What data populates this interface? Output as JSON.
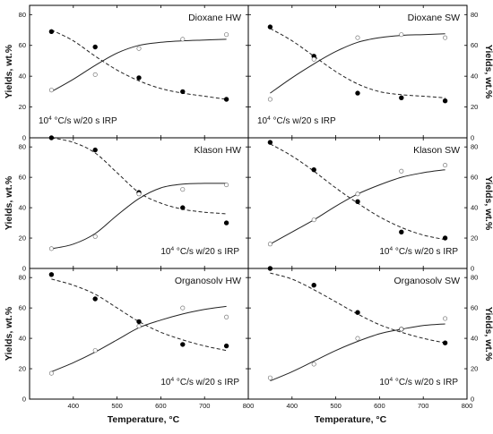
{
  "chart_data": [
    {
      "type": "scatter",
      "title": "Dioxane HW",
      "annotation": {
        "base": "10",
        "exp": "4",
        "rest": " °C/s w/20 s IRP"
      },
      "x": [
        350,
        450,
        550,
        650,
        750
      ],
      "series": [
        {
          "marker": "filled",
          "values": [
            69,
            59,
            39,
            30,
            25
          ]
        },
        {
          "marker": "open",
          "values": [
            31,
            41,
            58,
            64,
            67
          ]
        }
      ],
      "fits": [
        {
          "style": "dashed",
          "x": [
            350,
            400,
            450,
            500,
            550,
            600,
            650,
            700,
            750
          ],
          "y": [
            70,
            63,
            53,
            44,
            37,
            32,
            29,
            27,
            25
          ]
        },
        {
          "style": "solid",
          "x": [
            350,
            400,
            450,
            500,
            550,
            600,
            650,
            700,
            750
          ],
          "y": [
            30,
            38,
            47,
            55,
            60,
            62,
            63,
            63.5,
            64
          ]
        }
      ],
      "ylim": [
        0,
        86
      ],
      "xlim": [
        300,
        800
      ]
    },
    {
      "type": "scatter",
      "title": "Dioxane SW",
      "annotation": {
        "base": "10",
        "exp": "4",
        "rest": " °C/s w/20 s IRP"
      },
      "x": [
        350,
        450,
        550,
        650,
        750
      ],
      "series": [
        {
          "marker": "filled",
          "values": [
            72,
            53,
            29,
            26,
            24
          ]
        },
        {
          "marker": "open",
          "values": [
            25,
            51,
            65,
            67,
            65
          ]
        }
      ],
      "fits": [
        {
          "style": "dashed",
          "x": [
            350,
            400,
            450,
            500,
            550,
            600,
            650,
            700,
            750
          ],
          "y": [
            71,
            63,
            53,
            43,
            35,
            30,
            28,
            27,
            26
          ]
        },
        {
          "style": "solid",
          "x": [
            350,
            400,
            450,
            500,
            550,
            600,
            650,
            700,
            750
          ],
          "y": [
            29,
            39,
            48,
            56,
            62,
            65,
            66.5,
            67,
            67.5
          ]
        }
      ],
      "ylim": [
        0,
        86
      ],
      "xlim": [
        300,
        800
      ]
    },
    {
      "type": "scatter",
      "title": "Klason HW",
      "annotation": {
        "base": "10",
        "exp": "4",
        "rest": " °C/s w/20 s IRP"
      },
      "x": [
        350,
        450,
        550,
        650,
        750
      ],
      "series": [
        {
          "marker": "filled",
          "values": [
            86,
            78,
            50,
            40,
            30
          ]
        },
        {
          "marker": "open",
          "values": [
            13,
            21,
            49,
            52,
            55
          ]
        }
      ],
      "fits": [
        {
          "style": "dashed",
          "x": [
            350,
            400,
            450,
            500,
            550,
            600,
            650,
            700,
            750
          ],
          "y": [
            86,
            83,
            76,
            63,
            50,
            43,
            39,
            37,
            36
          ]
        },
        {
          "style": "solid",
          "x": [
            350,
            400,
            450,
            500,
            550,
            600,
            650,
            700,
            750
          ],
          "y": [
            13,
            16,
            23,
            35,
            46,
            53,
            55.5,
            56,
            56
          ]
        }
      ],
      "ylim": [
        0,
        86
      ],
      "xlim": [
        300,
        800
      ]
    },
    {
      "type": "scatter",
      "title": "Klason SW",
      "annotation": {
        "base": "10",
        "exp": "4",
        "rest": " °C/s w/20 s IRP"
      },
      "x": [
        350,
        450,
        550,
        650,
        750
      ],
      "series": [
        {
          "marker": "filled",
          "values": [
            83,
            65,
            44,
            24,
            20
          ]
        },
        {
          "marker": "open",
          "values": [
            16,
            32,
            49,
            64,
            68
          ]
        }
      ],
      "fits": [
        {
          "style": "dashed",
          "x": [
            350,
            400,
            450,
            500,
            550,
            600,
            650,
            700,
            750
          ],
          "y": [
            82,
            74,
            64,
            53,
            43,
            34,
            27,
            22,
            19
          ]
        },
        {
          "style": "solid",
          "x": [
            350,
            400,
            450,
            500,
            550,
            600,
            650,
            700,
            750
          ],
          "y": [
            16,
            24,
            32,
            41,
            49,
            55,
            60,
            63,
            65
          ]
        }
      ],
      "ylim": [
        0,
        86
      ],
      "xlim": [
        300,
        800
      ]
    },
    {
      "type": "scatter",
      "title": "Organosolv HW",
      "annotation": {
        "base": "10",
        "exp": "4",
        "rest": " °C/s w/20 s IRP"
      },
      "x": [
        350,
        450,
        550,
        650,
        750
      ],
      "series": [
        {
          "marker": "filled",
          "values": [
            82,
            66,
            51,
            36,
            35
          ]
        },
        {
          "marker": "open",
          "values": [
            17,
            32,
            48,
            60,
            54
          ]
        }
      ],
      "fits": [
        {
          "style": "dashed",
          "x": [
            350,
            400,
            450,
            500,
            550,
            600,
            650,
            700,
            750
          ],
          "y": [
            79,
            75,
            69,
            60,
            51,
            44,
            39,
            35,
            32
          ]
        },
        {
          "style": "solid",
          "x": [
            350,
            400,
            450,
            500,
            550,
            600,
            650,
            700,
            750
          ],
          "y": [
            18,
            24,
            31,
            39,
            47,
            52,
            56,
            59,
            61
          ]
        }
      ],
      "ylim": [
        0,
        86
      ],
      "xlim": [
        300,
        800
      ]
    },
    {
      "type": "scatter",
      "title": "Organosolv SW",
      "annotation": {
        "base": "10",
        "exp": "4",
        "rest": " °C/s w/20 s IRP"
      },
      "x": [
        350,
        450,
        550,
        650,
        750
      ],
      "series": [
        {
          "marker": "filled",
          "values": [
            86,
            75,
            57,
            46,
            37
          ]
        },
        {
          "marker": "open",
          "values": [
            14,
            23,
            40,
            46,
            53
          ]
        }
      ],
      "fits": [
        {
          "style": "dashed",
          "x": [
            350,
            400,
            450,
            500,
            550,
            600,
            650,
            700,
            750
          ],
          "y": [
            83,
            79,
            72,
            64,
            56,
            49,
            44,
            40,
            37
          ]
        },
        {
          "style": "solid",
          "x": [
            350,
            400,
            450,
            500,
            550,
            600,
            650,
            700,
            750
          ],
          "y": [
            12,
            18,
            25,
            32,
            38,
            43,
            46,
            48.5,
            49.5
          ]
        }
      ],
      "ylim": [
        0,
        86
      ],
      "xlim": [
        300,
        800
      ]
    }
  ],
  "axes": {
    "ylabel": "Yields, wt.%",
    "xlabel": "Temperature, °C",
    "xticks": [
      "400",
      "500",
      "600",
      "700",
      "800"
    ],
    "yticks": [
      "0",
      "20",
      "40",
      "60",
      "80"
    ],
    "y_axis_side": [
      "left",
      "right"
    ]
  }
}
